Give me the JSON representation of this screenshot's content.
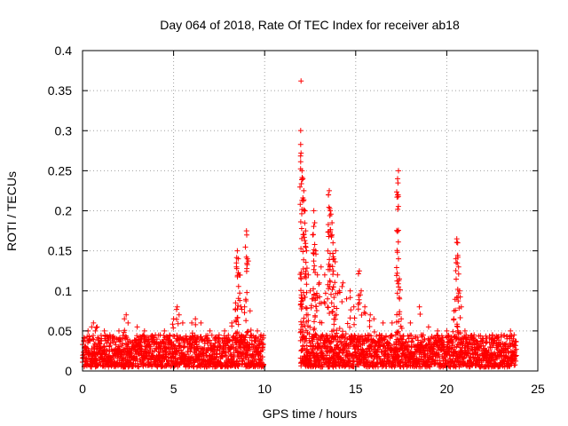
{
  "chart_data": {
    "type": "scatter",
    "title": "Day 064 of 2018, Rate Of TEC Index for receiver ab18",
    "xlabel": "GPS time / hours",
    "ylabel": "ROTI / TECUs",
    "xlim": [
      0,
      25
    ],
    "ylim": [
      0,
      0.4
    ],
    "x_ticks": [
      0,
      5,
      10,
      15,
      20,
      25
    ],
    "y_ticks": [
      0,
      0.05,
      0.1,
      0.15,
      0.2,
      0.25,
      0.3,
      0.35,
      0.4
    ],
    "x_tick_labels": [
      "0",
      "5",
      "10",
      "15",
      "20",
      "25"
    ],
    "y_tick_labels": [
      "0",
      "0.05",
      "0.1",
      "0.15",
      "0.2",
      "0.25",
      "0.3",
      "0.35",
      "0.4"
    ],
    "grid": true,
    "marker": "+",
    "marker_color": "#ff0000",
    "data_gaps_hours": [
      [
        9.95,
        11.95
      ]
    ],
    "series": [
      {
        "name": "ROTI",
        "background_band": {
          "x_range": [
            0,
            23.8
          ],
          "typical_min": 0.005,
          "typical_max": 0.045
        },
        "points": [
          {
            "x": 0.1,
            "y": 0.04
          },
          {
            "x": 0.3,
            "y": 0.05
          },
          {
            "x": 0.5,
            "y": 0.055
          },
          {
            "x": 0.6,
            "y": 0.06
          },
          {
            "x": 0.7,
            "y": 0.05
          },
          {
            "x": 0.8,
            "y": 0.055
          },
          {
            "x": 1.2,
            "y": 0.05
          },
          {
            "x": 1.5,
            "y": 0.045
          },
          {
            "x": 2.0,
            "y": 0.05
          },
          {
            "x": 2.3,
            "y": 0.065
          },
          {
            "x": 2.4,
            "y": 0.07
          },
          {
            "x": 2.5,
            "y": 0.06
          },
          {
            "x": 3.0,
            "y": 0.055
          },
          {
            "x": 3.4,
            "y": 0.05
          },
          {
            "x": 4.0,
            "y": 0.045
          },
          {
            "x": 4.5,
            "y": 0.05
          },
          {
            "x": 5.0,
            "y": 0.065
          },
          {
            "x": 5.2,
            "y": 0.08
          },
          {
            "x": 5.3,
            "y": 0.07
          },
          {
            "x": 5.5,
            "y": 0.06
          },
          {
            "x": 6.0,
            "y": 0.06
          },
          {
            "x": 6.2,
            "y": 0.065
          },
          {
            "x": 6.5,
            "y": 0.06
          },
          {
            "x": 7.0,
            "y": 0.05
          },
          {
            "x": 7.5,
            "y": 0.045
          },
          {
            "x": 7.8,
            "y": 0.05
          },
          {
            "x": 8.2,
            "y": 0.06
          },
          {
            "x": 8.4,
            "y": 0.085
          },
          {
            "x": 8.45,
            "y": 0.13
          },
          {
            "x": 8.5,
            "y": 0.15
          },
          {
            "x": 8.55,
            "y": 0.14
          },
          {
            "x": 8.6,
            "y": 0.12
          },
          {
            "x": 8.7,
            "y": 0.08
          },
          {
            "x": 8.9,
            "y": 0.08
          },
          {
            "x": 9.0,
            "y": 0.175
          },
          {
            "x": 9.05,
            "y": 0.14
          },
          {
            "x": 9.2,
            "y": 0.075
          },
          {
            "x": 9.6,
            "y": 0.05
          },
          {
            "x": 9.8,
            "y": 0.045
          },
          {
            "x": 12.0,
            "y": 0.362
          },
          {
            "x": 12.0,
            "y": 0.272
          },
          {
            "x": 12.05,
            "y": 0.25
          },
          {
            "x": 12.1,
            "y": 0.24
          },
          {
            "x": 12.15,
            "y": 0.225
          },
          {
            "x": 12.2,
            "y": 0.2
          },
          {
            "x": 12.25,
            "y": 0.175
          },
          {
            "x": 12.3,
            "y": 0.15
          },
          {
            "x": 12.4,
            "y": 0.12
          },
          {
            "x": 12.5,
            "y": 0.1
          },
          {
            "x": 12.6,
            "y": 0.09
          },
          {
            "x": 12.7,
            "y": 0.2
          },
          {
            "x": 12.75,
            "y": 0.185
          },
          {
            "x": 12.8,
            "y": 0.15
          },
          {
            "x": 12.9,
            "y": 0.12
          },
          {
            "x": 13.0,
            "y": 0.11
          },
          {
            "x": 13.1,
            "y": 0.13
          },
          {
            "x": 13.3,
            "y": 0.12
          },
          {
            "x": 13.5,
            "y": 0.22
          },
          {
            "x": 13.55,
            "y": 0.225
          },
          {
            "x": 13.6,
            "y": 0.2
          },
          {
            "x": 13.7,
            "y": 0.185
          },
          {
            "x": 13.75,
            "y": 0.16
          },
          {
            "x": 13.8,
            "y": 0.14
          },
          {
            "x": 13.9,
            "y": 0.15
          },
          {
            "x": 14.0,
            "y": 0.12
          },
          {
            "x": 14.1,
            "y": 0.1
          },
          {
            "x": 14.3,
            "y": 0.11
          },
          {
            "x": 14.5,
            "y": 0.09
          },
          {
            "x": 14.7,
            "y": 0.1
          },
          {
            "x": 14.9,
            "y": 0.08
          },
          {
            "x": 15.2,
            "y": 0.125
          },
          {
            "x": 15.3,
            "y": 0.1
          },
          {
            "x": 15.5,
            "y": 0.08
          },
          {
            "x": 15.8,
            "y": 0.07
          },
          {
            "x": 16.0,
            "y": 0.065
          },
          {
            "x": 16.5,
            "y": 0.06
          },
          {
            "x": 17.0,
            "y": 0.06
          },
          {
            "x": 17.3,
            "y": 0.22
          },
          {
            "x": 17.3,
            "y": 0.24
          },
          {
            "x": 17.35,
            "y": 0.25
          },
          {
            "x": 17.35,
            "y": 0.14
          },
          {
            "x": 17.4,
            "y": 0.115
          },
          {
            "x": 17.5,
            "y": 0.065
          },
          {
            "x": 18.0,
            "y": 0.06
          },
          {
            "x": 18.5,
            "y": 0.08
          },
          {
            "x": 19.0,
            "y": 0.055
          },
          {
            "x": 19.5,
            "y": 0.05
          },
          {
            "x": 20.0,
            "y": 0.05
          },
          {
            "x": 20.4,
            "y": 0.075
          },
          {
            "x": 20.5,
            "y": 0.14
          },
          {
            "x": 20.55,
            "y": 0.165
          },
          {
            "x": 20.6,
            "y": 0.16
          },
          {
            "x": 20.65,
            "y": 0.13
          },
          {
            "x": 20.7,
            "y": 0.1
          },
          {
            "x": 20.8,
            "y": 0.08
          },
          {
            "x": 21.0,
            "y": 0.05
          },
          {
            "x": 21.5,
            "y": 0.045
          },
          {
            "x": 22.0,
            "y": 0.04
          },
          {
            "x": 22.5,
            "y": 0.045
          },
          {
            "x": 23.0,
            "y": 0.045
          },
          {
            "x": 23.5,
            "y": 0.05
          },
          {
            "x": 23.7,
            "y": 0.045
          }
        ]
      }
    ]
  }
}
